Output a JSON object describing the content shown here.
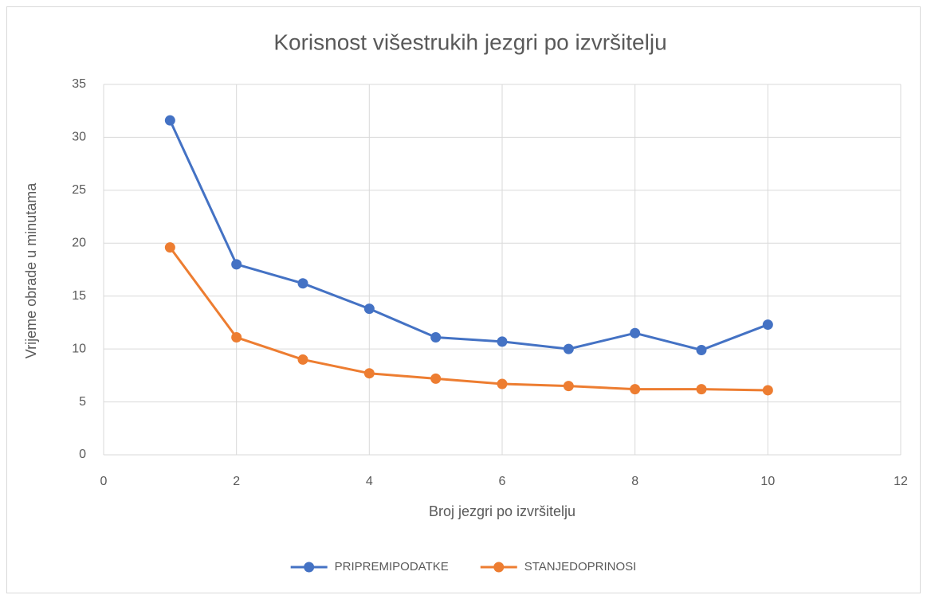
{
  "chart_data": {
    "type": "line",
    "title": "Korisnost višestrukih jezgri po izvršitelju",
    "xlabel": "Broj jezgri po izvršitelju",
    "ylabel": "Vrijeme obrade u minutama",
    "x": [
      1,
      2,
      3,
      4,
      5,
      6,
      7,
      8,
      9,
      10
    ],
    "series": [
      {
        "name": "PRIPREMIPODATKE",
        "color": "#4472c4",
        "values": [
          31.6,
          18.0,
          16.2,
          13.8,
          11.1,
          10.7,
          10.0,
          11.5,
          9.9,
          12.3
        ]
      },
      {
        "name": "STANJEDOPRINOSI",
        "color": "#ed7d31",
        "values": [
          19.6,
          11.1,
          9.0,
          7.7,
          7.2,
          6.7,
          6.5,
          6.2,
          6.2,
          6.1
        ]
      }
    ],
    "xlim": [
      0,
      12
    ],
    "xticks": [
      0,
      2,
      4,
      6,
      8,
      10,
      12
    ],
    "ylim": [
      0,
      35
    ],
    "yticks": [
      0,
      5,
      10,
      15,
      20,
      25,
      30,
      35
    ],
    "grid": true,
    "legend": "bottom"
  }
}
